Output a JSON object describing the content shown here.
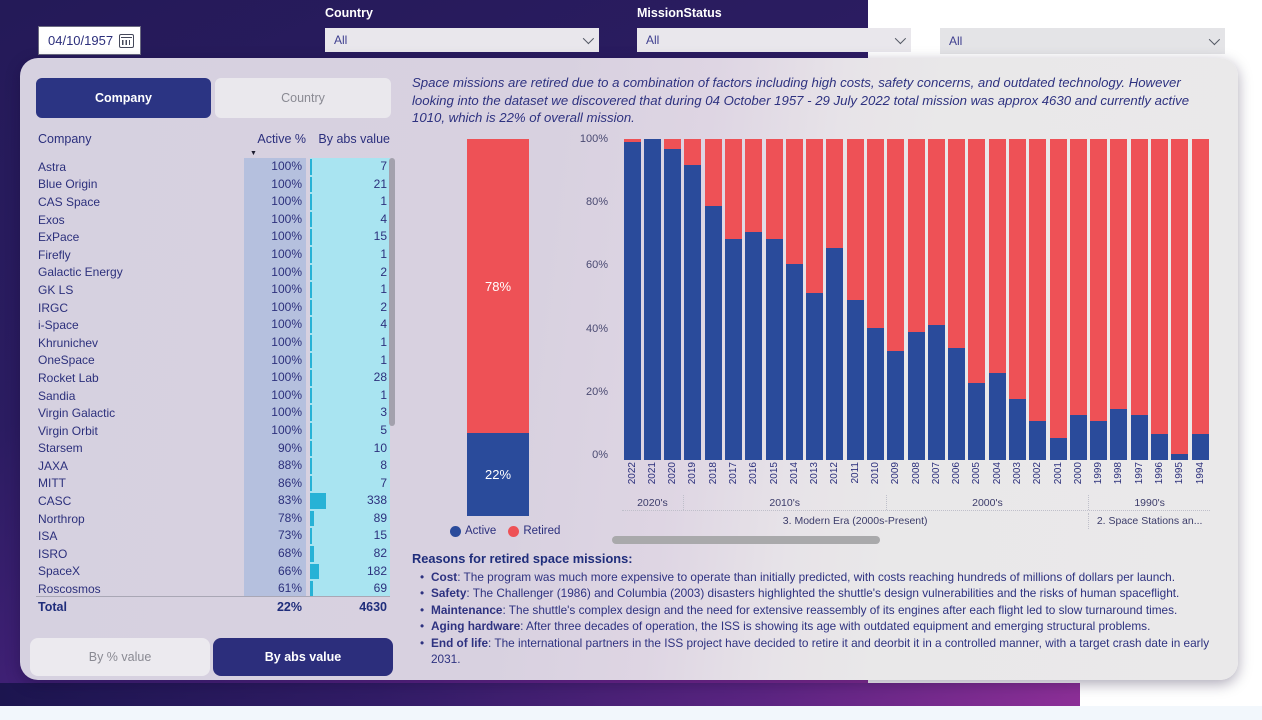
{
  "colors": {
    "active": "#2a4b9b",
    "retired": "#ee5156",
    "abs_bar": "#27b2d6",
    "accent_dark": "#2b3483"
  },
  "filters": {
    "date_value": "04/10/1957",
    "country_label": "Country",
    "country_value": "All",
    "mission_status_label": "MissionStatus",
    "mission_status_value": "All",
    "extra_value": "All"
  },
  "panel": {
    "tab_company": "Company",
    "tab_country": "Country",
    "columns": {
      "company": "Company",
      "active_pct": "Active %",
      "abs": "By abs value"
    },
    "rows": [
      {
        "name": "Astra",
        "active": 100,
        "value": 7
      },
      {
        "name": "Blue Origin",
        "active": 100,
        "value": 21
      },
      {
        "name": "CAS Space",
        "active": 100,
        "value": 1
      },
      {
        "name": "Exos",
        "active": 100,
        "value": 4
      },
      {
        "name": "ExPace",
        "active": 100,
        "value": 15
      },
      {
        "name": "Firefly",
        "active": 100,
        "value": 1
      },
      {
        "name": "Galactic Energy",
        "active": 100,
        "value": 2
      },
      {
        "name": "GK LS",
        "active": 100,
        "value": 1
      },
      {
        "name": "IRGC",
        "active": 100,
        "value": 2
      },
      {
        "name": "i-Space",
        "active": 100,
        "value": 4
      },
      {
        "name": "Khrunichev",
        "active": 100,
        "value": 1
      },
      {
        "name": "OneSpace",
        "active": 100,
        "value": 1
      },
      {
        "name": "Rocket Lab",
        "active": 100,
        "value": 28
      },
      {
        "name": "Sandia",
        "active": 100,
        "value": 1
      },
      {
        "name": "Virgin Galactic",
        "active": 100,
        "value": 3
      },
      {
        "name": "Virgin Orbit",
        "active": 100,
        "value": 5
      },
      {
        "name": "Starsem",
        "active": 90,
        "value": 10
      },
      {
        "name": "JAXA",
        "active": 88,
        "value": 8
      },
      {
        "name": "MITT",
        "active": 86,
        "value": 7
      },
      {
        "name": "CASC",
        "active": 83,
        "value": 338
      },
      {
        "name": "Northrop",
        "active": 78,
        "value": 89
      },
      {
        "name": "ISA",
        "active": 73,
        "value": 15
      },
      {
        "name": "ISRO",
        "active": 68,
        "value": 82
      },
      {
        "name": "SpaceX",
        "active": 66,
        "value": 182
      },
      {
        "name": "Roscosmos",
        "active": 61,
        "value": 69
      }
    ],
    "total": {
      "label": "Total",
      "active": "22%",
      "value": "4630"
    },
    "btn_pct": "By % value",
    "btn_abs": "By abs value"
  },
  "description": "Space missions are retired due to a combination of factors including high costs, safety concerns, and outdated technology. However looking into the dataset we discovered that during 04 October 1957 - 29 July 2022 total mission was approx 4630 and currently active 1010, which is 22% of overall mission.",
  "chart_data": [
    {
      "type": "bar",
      "stacked": true,
      "categories": [
        "Overall"
      ],
      "series": [
        {
          "name": "Active",
          "values": [
            22
          ],
          "color": "#2a4b9b"
        },
        {
          "name": "Retired",
          "values": [
            78
          ],
          "color": "#ee5156"
        }
      ],
      "legend": [
        "Active",
        "Retired"
      ],
      "legend_position": "bottom",
      "ylim": [
        0,
        100
      ]
    },
    {
      "type": "bar",
      "stacked": true,
      "percent": true,
      "categories": [
        "2022",
        "2021",
        "2020",
        "2019",
        "2018",
        "2017",
        "2016",
        "2015",
        "2014",
        "2013",
        "2012",
        "2011",
        "2010",
        "2009",
        "2008",
        "2007",
        "2006",
        "2005",
        "2004",
        "2003",
        "2002",
        "2001",
        "2000",
        "1999",
        "1998",
        "1997",
        "1996",
        "1995",
        "1994"
      ],
      "series": [
        {
          "name": "Active",
          "color": "#2a4b9b",
          "values": [
            99,
            100,
            97,
            92,
            79,
            69,
            71,
            69,
            61,
            52,
            66,
            50,
            41,
            34,
            40,
            42,
            35,
            24,
            27,
            19,
            12,
            7,
            14,
            12,
            16,
            14,
            8,
            2,
            8
          ]
        },
        {
          "name": "Retired",
          "color": "#ee5156",
          "values": [
            1,
            0,
            3,
            8,
            21,
            31,
            29,
            31,
            39,
            48,
            34,
            50,
            59,
            66,
            60,
            58,
            65,
            76,
            73,
            81,
            88,
            93,
            86,
            88,
            84,
            86,
            92,
            98,
            92
          ]
        }
      ],
      "yticks": [
        "100%",
        "80%",
        "60%",
        "40%",
        "20%",
        "0%"
      ],
      "ylim": [
        0,
        100
      ],
      "grid": false,
      "era_groups": [
        {
          "label": "2020's",
          "span": 3
        },
        {
          "label": "2010's",
          "span": 10
        },
        {
          "label": "2000's",
          "span": 10
        },
        {
          "label": "1990's",
          "span": 6
        }
      ],
      "era_groups_level2": [
        {
          "label": "3. Modern Era (2000s-Present)",
          "span": 23
        },
        {
          "label": "2. Space Stations an...",
          "span": 6
        }
      ]
    }
  ],
  "reasons": {
    "title": "Reasons for retired space missions:",
    "bullets": [
      {
        "term": "Cost",
        "text": ": The program was much more expensive to operate than initially predicted, with costs reaching hundreds of millions of dollars per launch."
      },
      {
        "term": "Safety",
        "text": ": The Challenger (1986) and Columbia (2003) disasters highlighted the shuttle's design vulnerabilities and the risks of human spaceflight."
      },
      {
        "term": "Maintenance",
        "text": ": The shuttle's complex design and the need for extensive reassembly of its engines after each flight led to slow turnaround times."
      },
      {
        "term": "Aging hardware",
        "text": ": After three decades of operation, the ISS is showing its age with outdated equipment and emerging structural problems."
      },
      {
        "term": "End of life",
        "text": ": The international partners in the ISS project have decided to retire it and deorbit it in a controlled manner, with a target crash date in early 2031."
      }
    ]
  }
}
